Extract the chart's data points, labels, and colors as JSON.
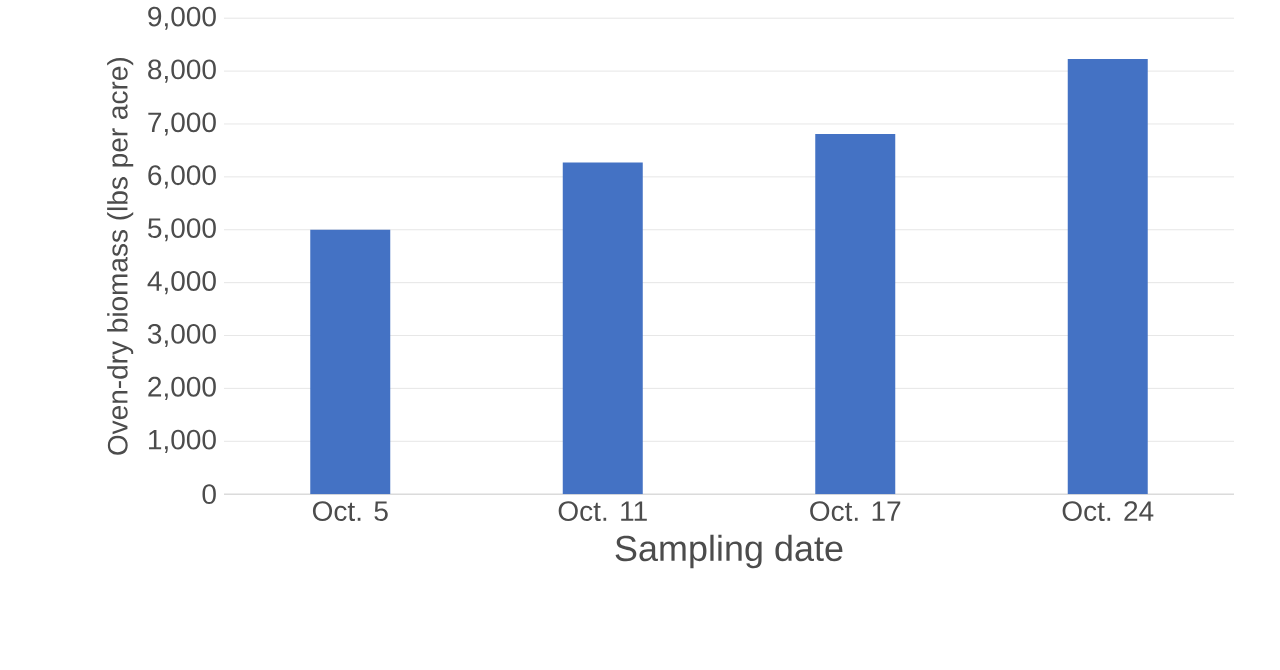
{
  "chart_data": {
    "type": "bar",
    "xlabel": "Sampling date",
    "ylabel": "Oven-dry biomass (lbs per acre)",
    "categories": [
      "Oct. 5",
      "Oct. 11",
      "Oct. 17",
      "Oct. 24"
    ],
    "values": [
      5000,
      6270,
      6810,
      8230
    ],
    "color": "#4472c4",
    "ylim": [
      0,
      9000
    ],
    "yticks": [
      {
        "value": 0,
        "label": "0"
      },
      {
        "value": 1000,
        "label": "1,000"
      },
      {
        "value": 2000,
        "label": "2,000"
      },
      {
        "value": 3000,
        "label": "3,000"
      },
      {
        "value": 4000,
        "label": "4,000"
      },
      {
        "value": 5000,
        "label": "5,000"
      },
      {
        "value": 6000,
        "label": "6,000"
      },
      {
        "value": 7000,
        "label": "7,000"
      },
      {
        "value": 8000,
        "label": "8,000"
      },
      {
        "value": 9000,
        "label": "9,000"
      }
    ],
    "grid": "y"
  }
}
